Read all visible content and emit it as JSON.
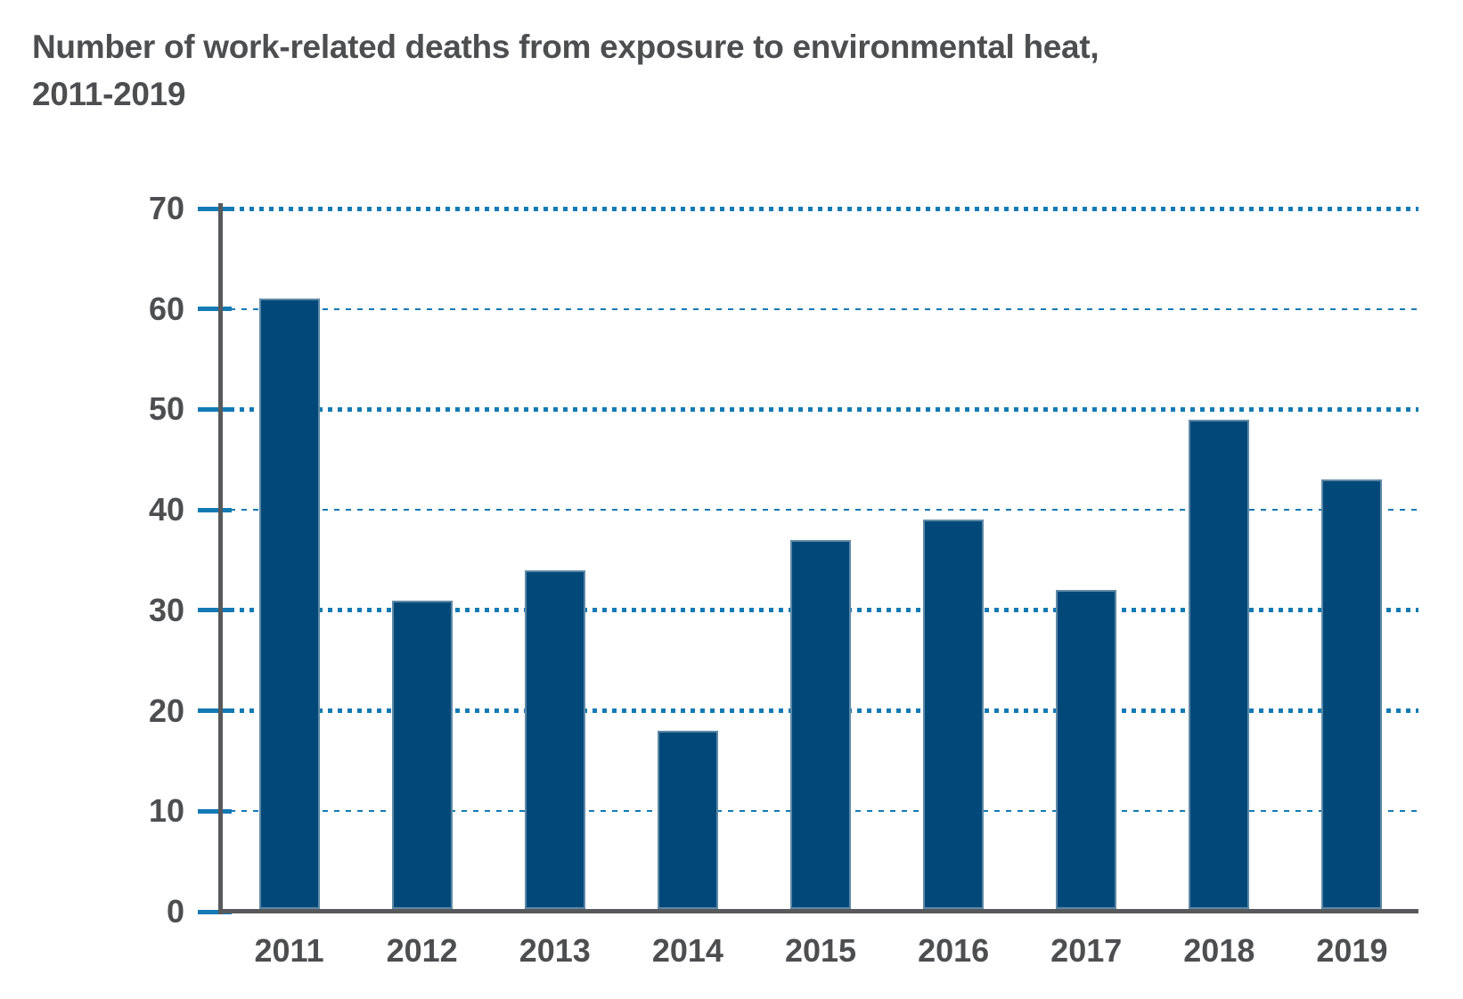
{
  "header": {
    "line1": "Number of work-related deaths from exposure to environmental heat,",
    "line2": "2011-2019"
  },
  "chart_data": {
    "type": "bar",
    "title": "Number of work-related deaths from exposure to environmental heat, 2011-2019",
    "categories": [
      "2011",
      "2012",
      "2013",
      "2014",
      "2015",
      "2016",
      "2017",
      "2018",
      "2019"
    ],
    "values": [
      61,
      31,
      34,
      18,
      37,
      39,
      32,
      49,
      43
    ],
    "xlabel": "",
    "ylabel": "",
    "ylim": [
      0,
      70
    ],
    "yticks": [
      0,
      10,
      20,
      30,
      40,
      50,
      60,
      70
    ],
    "grid": "horizontal-dashed",
    "gridline_styles": {
      "10": "thin",
      "20": "thick",
      "30": "thick",
      "40": "thin",
      "50": "thick",
      "60": "thin",
      "70": "thick"
    },
    "legend_position": "none"
  },
  "colors": {
    "bar_fill": "#02497A",
    "bar_edge": "#ADBECB",
    "gridline_blue": "#137AB4",
    "axis_gray": "#58595B",
    "text_gray": "#4D4E50",
    "background": "#FFFFFF"
  }
}
